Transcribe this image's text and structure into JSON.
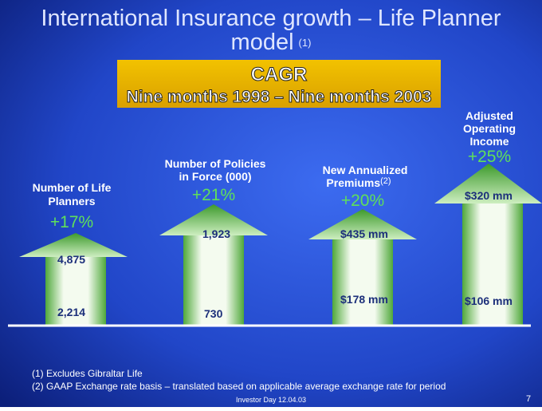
{
  "title": {
    "line1": "International Insurance growth – Life Planner",
    "line2": "model",
    "note": "(1)"
  },
  "cagr_box": {
    "heading": "CAGR",
    "period": "Nine months 1998 – Nine months 2003"
  },
  "metrics": [
    {
      "label_lines": [
        "Number of Life",
        "Planners"
      ],
      "growth": "+17%",
      "end_value": "4,875",
      "start_value": "2,214"
    },
    {
      "label_lines": [
        "Number of Policies",
        "in Force (000)"
      ],
      "growth": "+21%",
      "end_value": "1,923",
      "start_value": "730"
    },
    {
      "label_lines": [
        "New Annualized",
        "Premiums"
      ],
      "label_note": "(2)",
      "growth": "+20%",
      "end_value": "$435 mm",
      "start_value": "$178 mm"
    },
    {
      "label_lines": [
        "Adjusted",
        "Operating",
        "Income"
      ],
      "growth": "+25%",
      "end_value": "$320 mm",
      "start_value": "$106 mm"
    }
  ],
  "footnotes": [
    "(1) Excludes Gibraltar Life",
    "(2) GAAP Exchange rate basis – translated based on applicable average exchange rate for period"
  ],
  "footer": {
    "event": "Investor Day 12.04.03",
    "page": "7"
  }
}
